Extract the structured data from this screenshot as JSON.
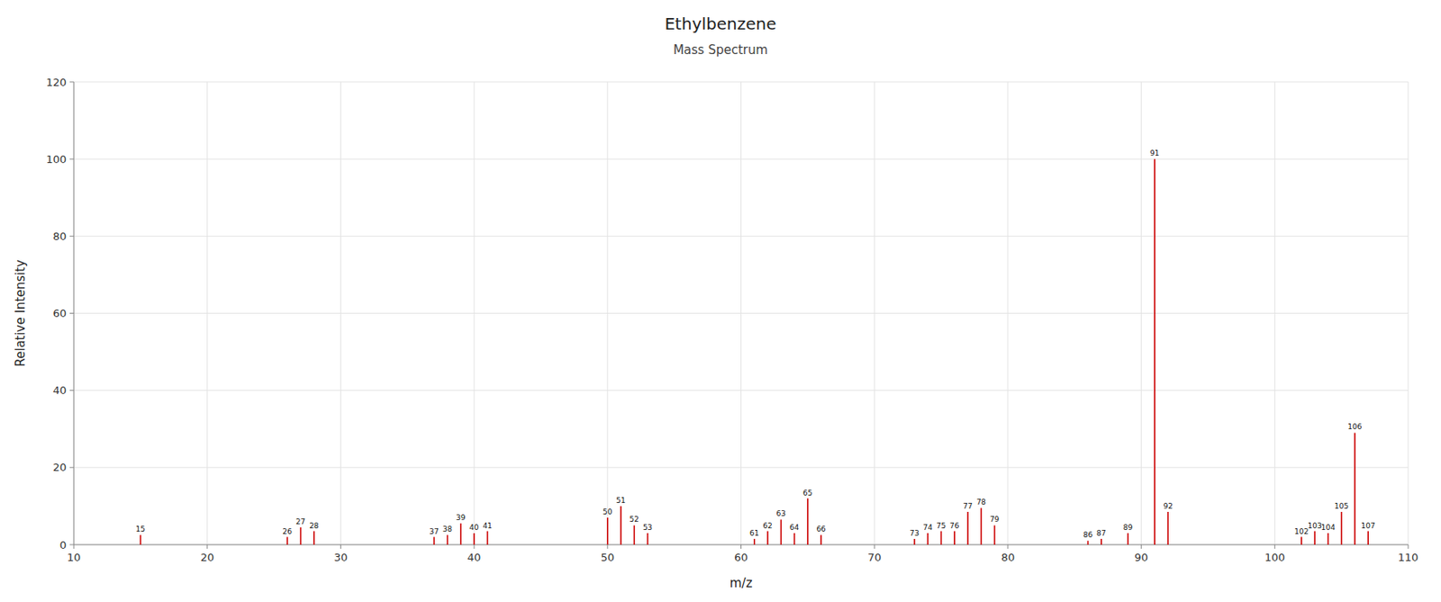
{
  "chart_data": {
    "type": "stem",
    "title": "Ethylbenzene",
    "subtitle": "Mass Spectrum",
    "x_label": "m/z",
    "y_label": "Relative Intensity",
    "x": [
      15,
      26,
      27,
      28,
      37,
      38,
      39,
      40,
      41,
      50,
      51,
      52,
      53,
      61,
      62,
      63,
      64,
      65,
      66,
      73,
      74,
      75,
      76,
      77,
      78,
      79,
      86,
      87,
      89,
      91,
      92,
      102,
      103,
      104,
      105,
      106,
      107
    ],
    "values": [
      2.5,
      2.0,
      4.5,
      3.5,
      2.0,
      2.5,
      5.5,
      3.0,
      3.5,
      7.0,
      10.0,
      5.0,
      3.0,
      1.5,
      3.5,
      6.5,
      3.0,
      12.0,
      2.5,
      1.5,
      3.0,
      3.5,
      3.5,
      8.5,
      9.5,
      5.0,
      1.0,
      1.5,
      3.0,
      100.0,
      8.5,
      2.0,
      3.5,
      3.0,
      8.5,
      29.0,
      3.5
    ],
    "color": "#cc0000",
    "xlim": [
      10,
      110
    ],
    "ylim": [
      0,
      120
    ],
    "xticks": [
      10,
      20,
      30,
      40,
      50,
      60,
      70,
      80,
      90,
      100,
      110
    ],
    "yticks": [
      0,
      20,
      40,
      60,
      80,
      100,
      120
    ],
    "grid": true,
    "data_labels": true
  }
}
